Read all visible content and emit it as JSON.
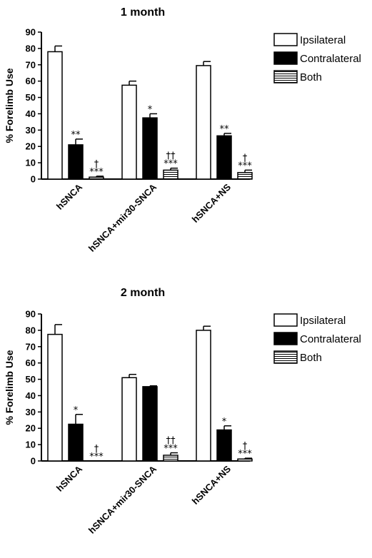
{
  "colors": {
    "ipsilateral": "#ffffff",
    "contralateral": "#000000",
    "both": "#ffffff",
    "stroke": "#000000"
  },
  "chart_data": [
    {
      "type": "bar",
      "title": "1 month",
      "ylabel": "% Forelimb Use",
      "xlabel": "",
      "ylim": [
        0,
        90
      ],
      "yticks": [
        0,
        10,
        20,
        30,
        40,
        50,
        60,
        70,
        80,
        90
      ],
      "categories": [
        "hSNCA",
        "hSNCA+mir30-SNCA",
        "hSNCA+NS"
      ],
      "legend_position": "top-right",
      "series": [
        {
          "name": "Ipsilateral",
          "pattern": "open",
          "values": [
            78,
            57.5,
            69.5
          ],
          "errors": [
            3.5,
            2.5,
            2.5
          ],
          "annotations": [
            "",
            "",
            ""
          ]
        },
        {
          "name": "Contralateral",
          "pattern": "solid",
          "values": [
            21,
            37.5,
            26.5
          ],
          "errors": [
            3.5,
            2.5,
            1.5
          ],
          "annotations": [
            "**",
            "*",
            "**"
          ]
        },
        {
          "name": "Both",
          "pattern": "striped",
          "values": [
            1.2,
            5.5,
            4
          ],
          "errors": [
            0.6,
            1.2,
            1.5
          ],
          "annotations": [
            "†\n***",
            "††\n***",
            "†\n***"
          ]
        }
      ]
    },
    {
      "type": "bar",
      "title": "2 month",
      "ylabel": "% Forelimb Use",
      "xlabel": "",
      "ylim": [
        0,
        90
      ],
      "yticks": [
        0,
        10,
        20,
        30,
        40,
        50,
        60,
        70,
        80,
        90
      ],
      "categories": [
        "hSNCA",
        "hSNCA+mir30-SNCA",
        "hSNCA+NS"
      ],
      "legend_position": "top-right",
      "series": [
        {
          "name": "Ipsilateral",
          "pattern": "open",
          "values": [
            77.5,
            51,
            80
          ],
          "errors": [
            6,
            2,
            2.5
          ],
          "annotations": [
            "",
            "",
            ""
          ]
        },
        {
          "name": "Contralateral",
          "pattern": "solid",
          "values": [
            22.5,
            45.5,
            19
          ],
          "errors": [
            6,
            0.5,
            2.5
          ],
          "annotations": [
            "*",
            "",
            "*"
          ]
        },
        {
          "name": "Both",
          "pattern": "striped",
          "values": [
            0,
            3.5,
            1.2
          ],
          "errors": [
            0,
            1.5,
            0.5
          ],
          "annotations": [
            "†\n***",
            "††\n***",
            "†\n***"
          ]
        }
      ]
    }
  ]
}
